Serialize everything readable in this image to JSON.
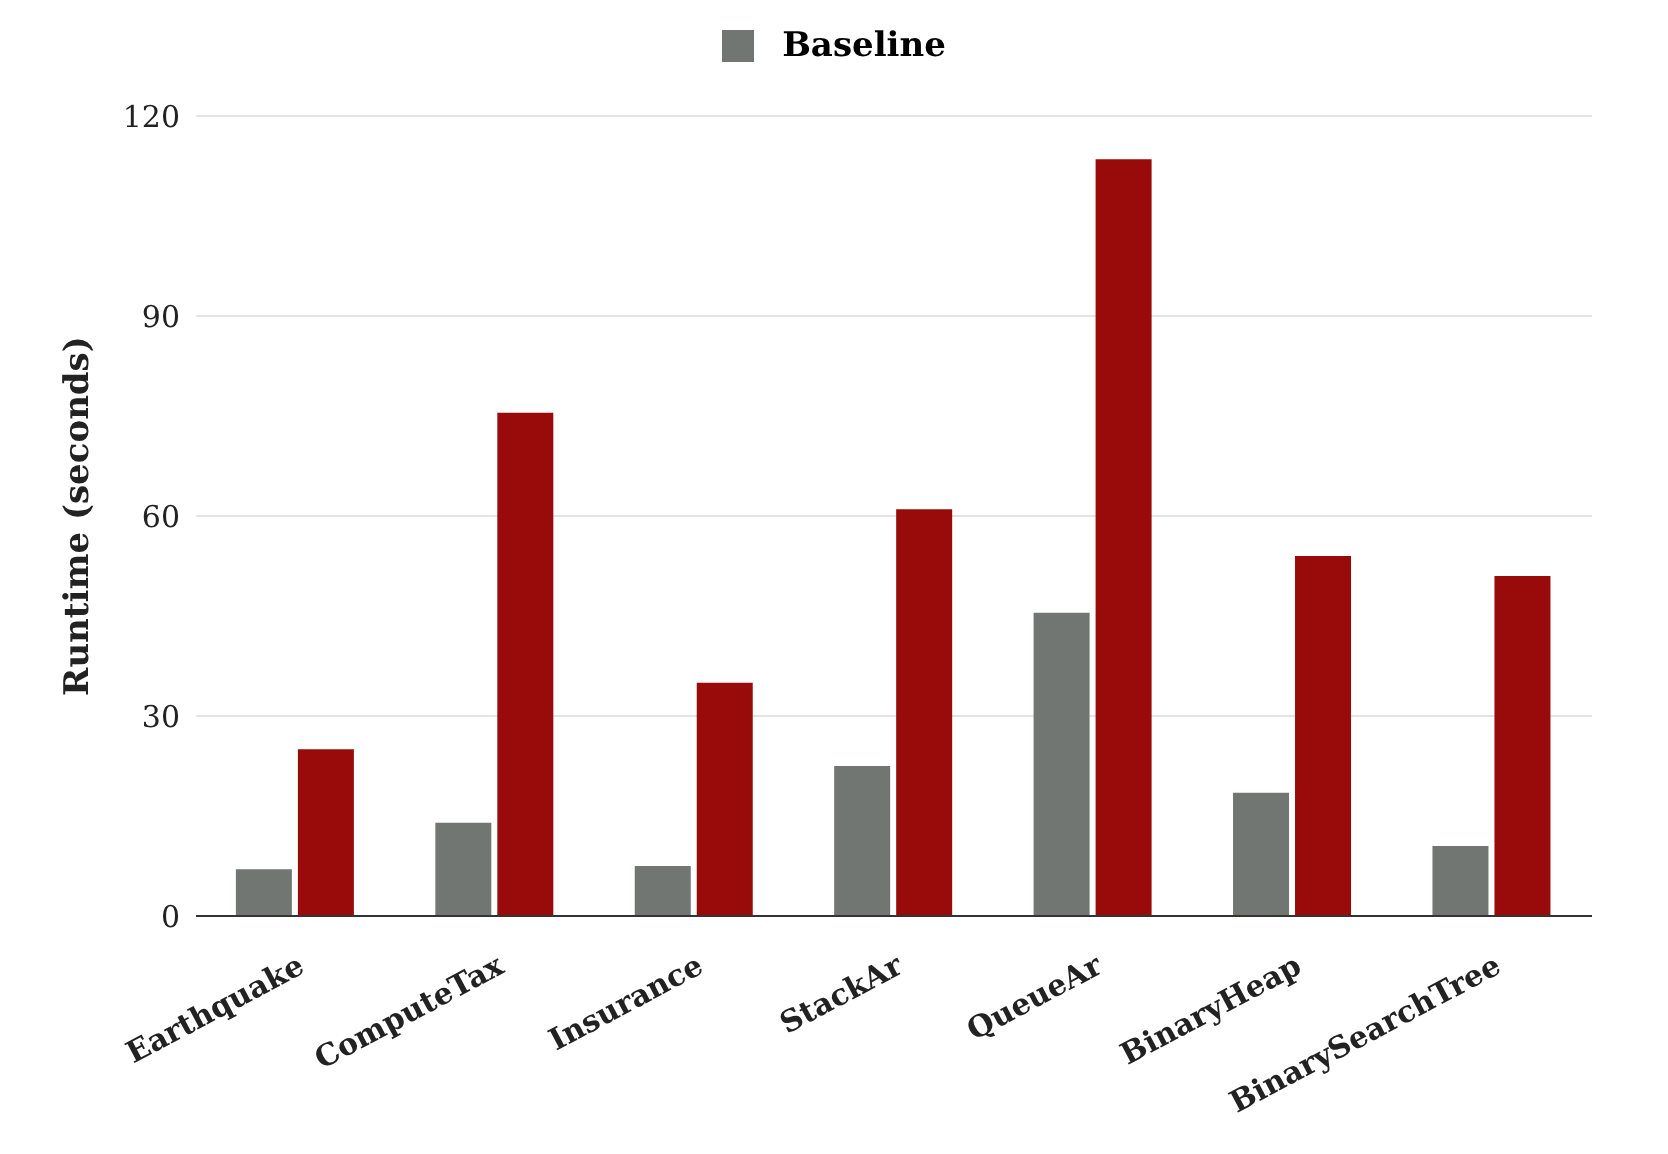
{
  "chart_data": {
    "type": "bar",
    "ylabel": "Runtime (seconds)",
    "categories": [
      "Earthquake",
      "ComputeTax",
      "Insurance",
      "StackAr",
      "QueueAr",
      "BinaryHeap",
      "BinarySearchTree"
    ],
    "series": [
      {
        "name": "Baseline",
        "color": "#717673",
        "values": [
          7,
          14,
          7.5,
          22.5,
          45.5,
          18.5,
          10.5
        ]
      },
      {
        "color": "#990a0a",
        "values": [
          25,
          75.5,
          35,
          61,
          113.5,
          54,
          51
        ]
      }
    ],
    "ylim": [
      0,
      120
    ],
    "yticks": [
      0,
      30,
      60,
      90,
      120
    ],
    "grid": "y",
    "legend": "top"
  }
}
